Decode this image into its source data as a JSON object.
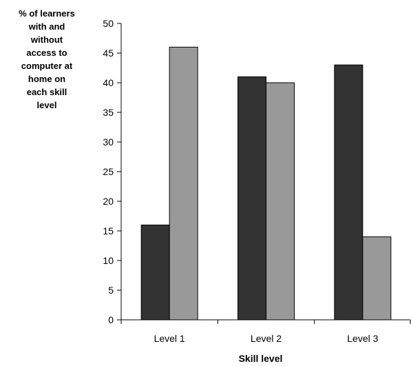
{
  "chart_data": {
    "type": "bar",
    "title": "",
    "xlabel": "Skill level",
    "ylabel": "% of learners with and without access to computer at home on each skill level",
    "ylabel_lines": [
      "% of learners",
      "with and",
      "without",
      "access to",
      "computer at",
      "home on",
      "each skill",
      "level"
    ],
    "categories": [
      "Level 1",
      "Level 2",
      "Level 3"
    ],
    "series": [
      {
        "values": [
          16,
          41,
          43
        ],
        "color": "#333333"
      },
      {
        "values": [
          46,
          40,
          14
        ],
        "color": "#999999"
      }
    ],
    "ylim": [
      0,
      50
    ],
    "yticks": [
      0,
      5,
      10,
      15,
      20,
      25,
      30,
      35,
      40,
      45,
      50
    ],
    "grid": false,
    "legend": "none"
  }
}
